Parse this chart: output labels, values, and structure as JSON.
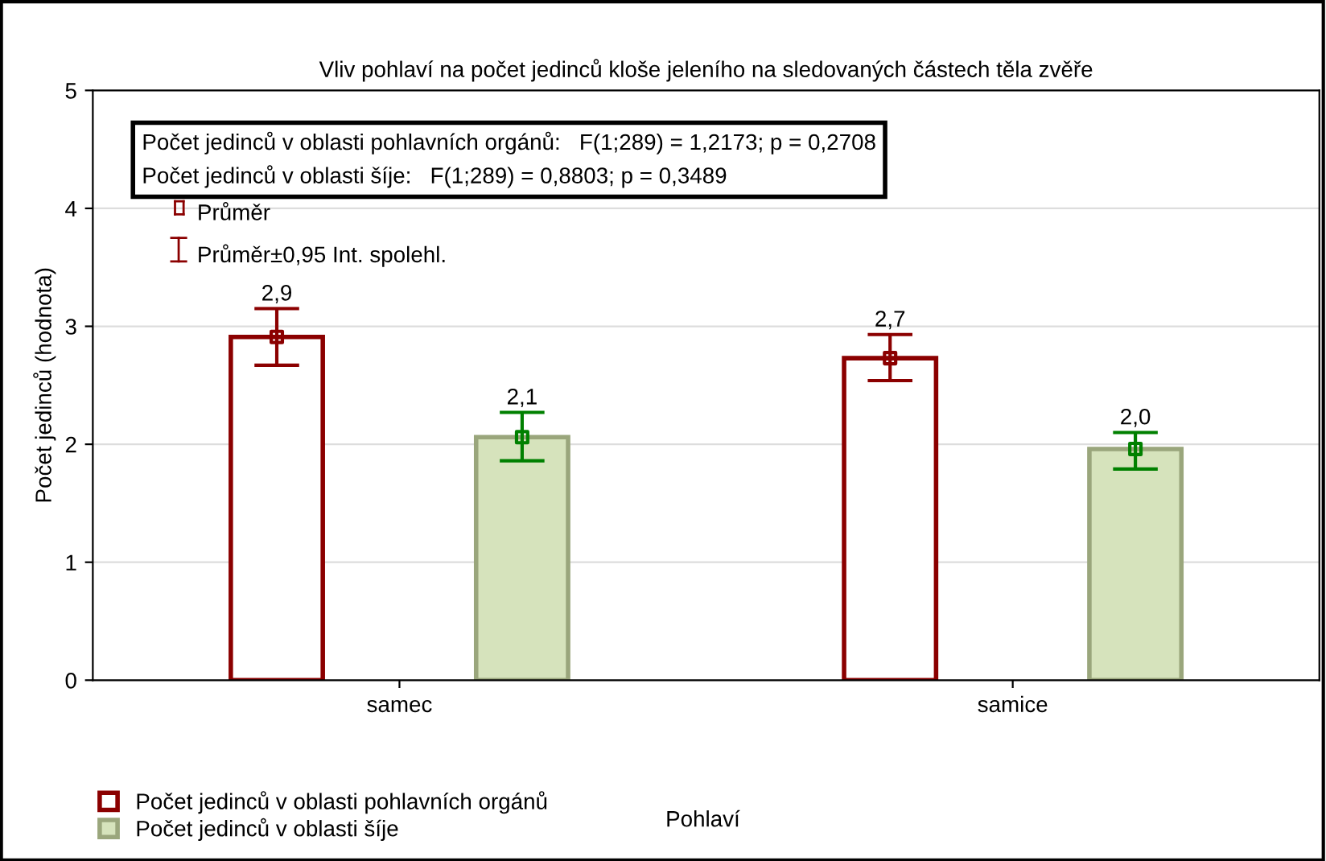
{
  "chart_data": {
    "type": "bar",
    "title": "Vliv pohlaví na počet jedinců kloše jeleního na sledovaných částech těla zvěře",
    "xlabel": "Pohlaví",
    "ylabel": "Počet jedinců (hodnota)",
    "categories": [
      "samec",
      "samice"
    ],
    "series": [
      {
        "name": "Počet jedinců v oblasti pohlavních orgánů",
        "color": "#8b0000",
        "values": [
          2.91,
          2.73
        ],
        "errors": [
          [
            2.67,
            3.15
          ],
          [
            2.54,
            2.93
          ]
        ],
        "value_labels": [
          "2,9",
          "2,7"
        ]
      },
      {
        "name": "Počet jedinců v oblasti šíje",
        "color": "#d6e3bc",
        "values": [
          2.06,
          1.96
        ],
        "errors": [
          [
            1.86,
            2.27
          ],
          [
            1.79,
            2.1
          ]
        ],
        "value_labels": [
          "2,1",
          "2,0"
        ]
      },
      {
        "type": "scatter",
        "color": "#8b0000",
        "x": [
          "samec",
          "samice"
        ],
        "values": [
          2.91,
          2.73
        ]
      },
      {
        "type": "scatter",
        "color": "#008000",
        "x": [
          "samec",
          "samice"
        ],
        "values": [
          2.06,
          1.96
        ]
      }
    ],
    "ylim": [
      0,
      5
    ],
    "yticks": [
      0,
      1,
      2,
      3,
      4,
      5
    ],
    "grid": "y",
    "legend": "bottom left",
    "marker": "square",
    "annotations": [
      "Počet jedinců v oblasti pohlavních orgánů:   F(1;289) = 1,2173; p = 0,2708\nPočet jedinců v oblasti šíje:   F(1;289) = 0,8803; p = 0,3489",
      "Průměr",
      "Průměr±0,95 Int. spolehl."
    ]
  }
}
